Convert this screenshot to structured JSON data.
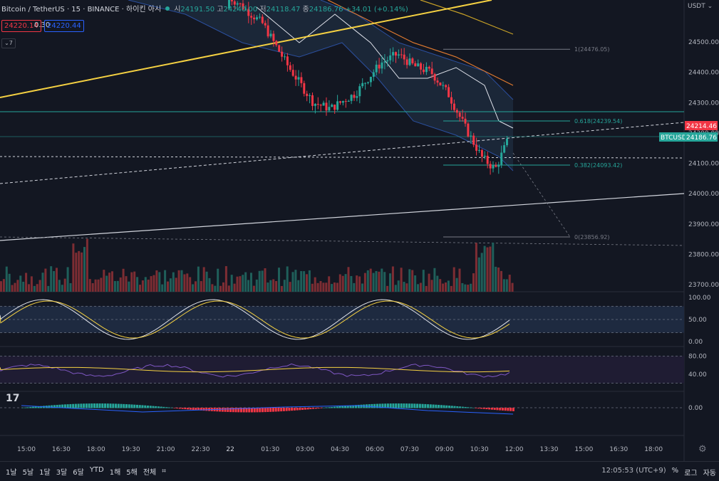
{
  "header": {
    "symbol": "Bitcoin / TetherUS · 15 · BINANCE · 하이킨 아시",
    "o_label": "시",
    "o_val": "24191.50",
    "h_label": "고",
    "h_val": "24240.00",
    "l_label": "저",
    "l_val": "24118.47",
    "c_label": "종",
    "c_val": "24186.76",
    "change": "+34.01 (+0.14%)",
    "sell_price": "24220.14",
    "spread": "0.30",
    "buy_price": "24220.44",
    "collapse_count": "7"
  },
  "axis": {
    "currency": "USDT",
    "price_ticks": [
      "24500.00",
      "24400.00",
      "24300.00",
      "24200.00",
      "24100.00",
      "24000.00",
      "23900.00",
      "23800.00",
      "23700.00"
    ],
    "stoch_ticks": [
      "100.00",
      "50.00",
      "0.00"
    ],
    "rsi_ticks": [
      "80.00",
      "40.00"
    ],
    "macd_ticks": [
      "0.00"
    ],
    "time_ticks": [
      "15:00",
      "16:30",
      "18:00",
      "19:30",
      "21:00",
      "22:30",
      "22",
      "01:30",
      "03:00",
      "04:30",
      "06:00",
      "07:30",
      "09:00",
      "10:30",
      "12:00",
      "13:30",
      "15:00",
      "16:30",
      "18:00"
    ],
    "last_price_red": "24214.46",
    "last_price": "24186.76",
    "symbol_tag": "BTCUSDT"
  },
  "fib": {
    "l1": "1(24476.05)",
    "l618": "0.618(24239.54)",
    "l382": "0.382(24093.42)",
    "l0": "0(23856.92)"
  },
  "colors": {
    "up": "#26a69a",
    "down": "#f23645",
    "yellow": "#f5d142",
    "bg": "#131722"
  },
  "bottom": {
    "timeframes": [
      "1날",
      "5날",
      "1달",
      "3달",
      "6달",
      "YTD",
      "1해",
      "5해",
      "전체"
    ],
    "clock": "12:05:53 (UTC+9)",
    "percent": "%",
    "log": "로그",
    "auto": "자동"
  }
}
